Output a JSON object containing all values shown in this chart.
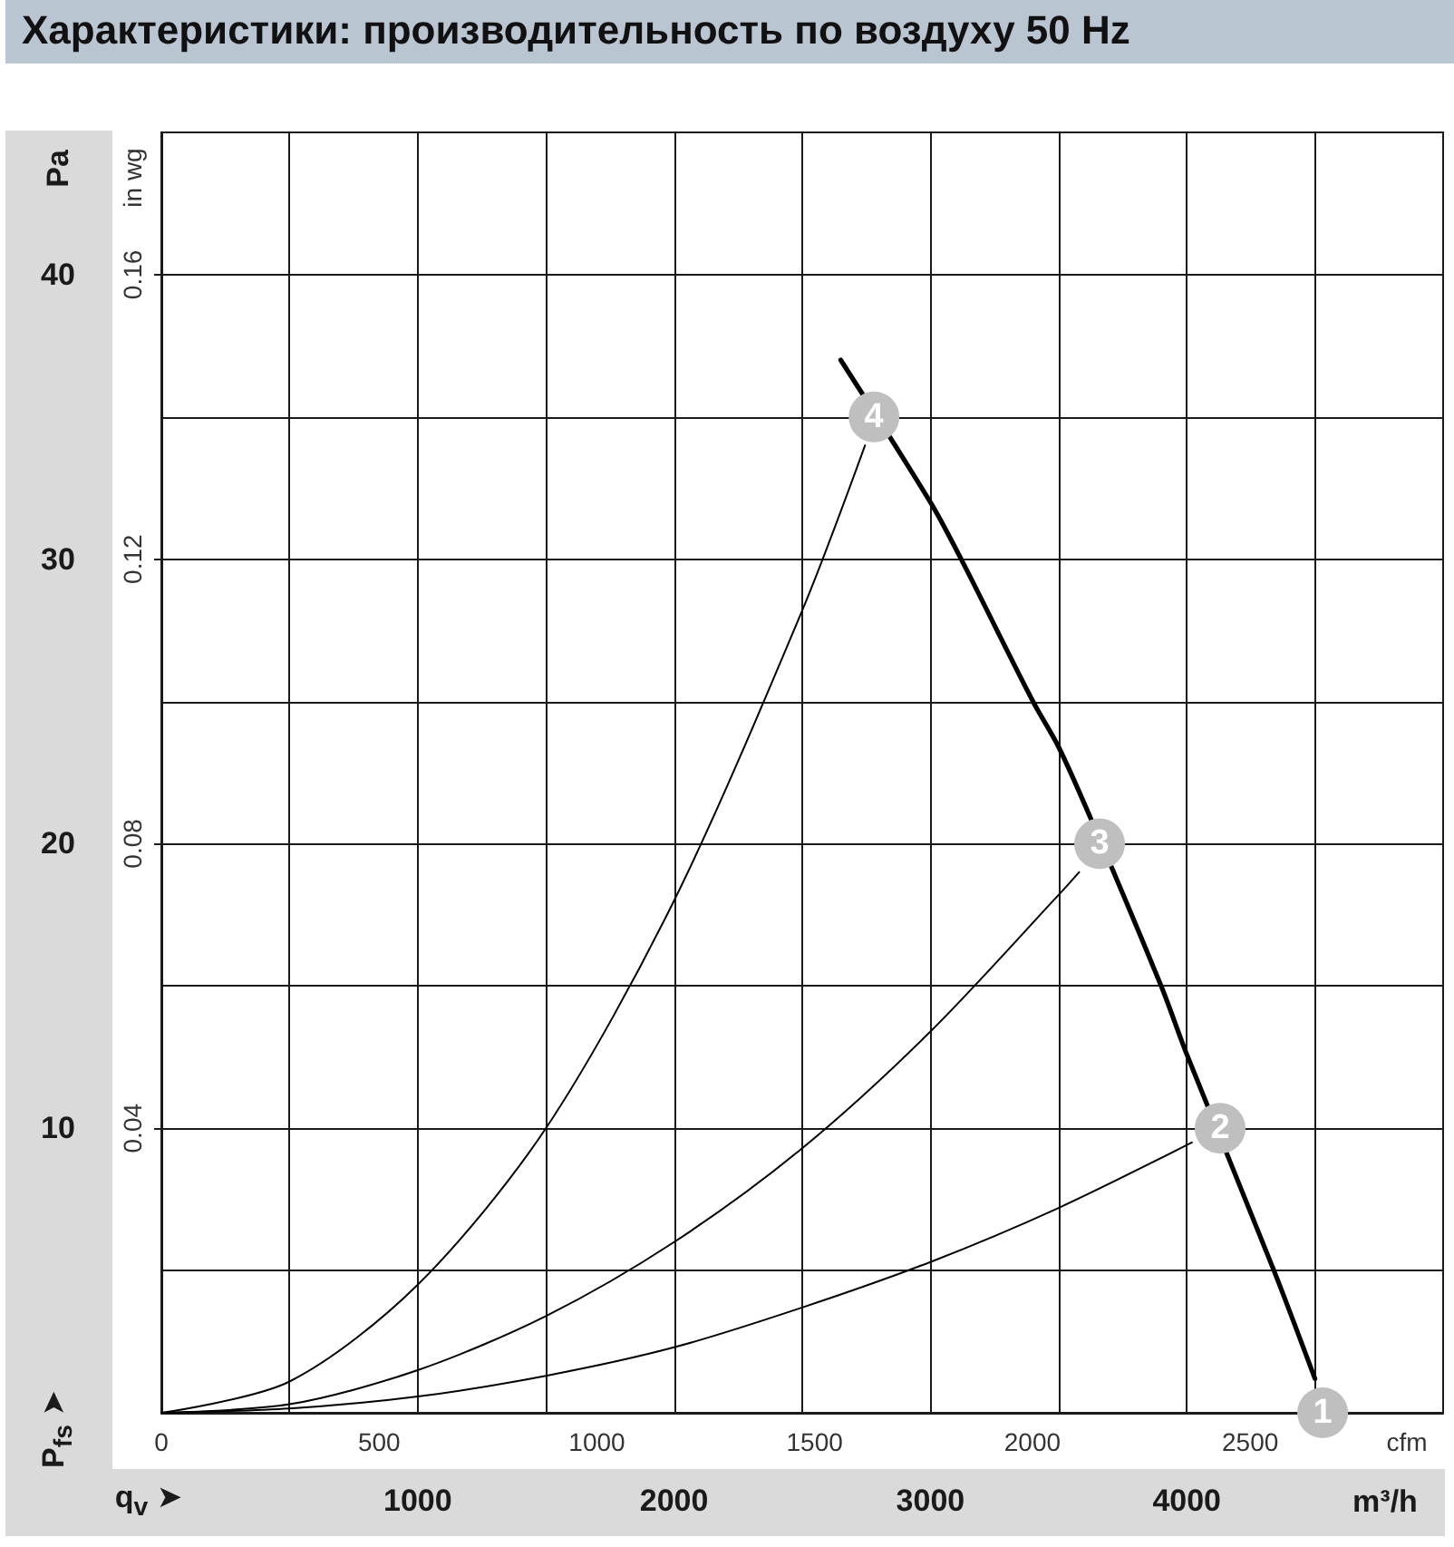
{
  "chart_data": {
    "type": "line",
    "title": "Характеристики: производительность по воздуху 50 Hz",
    "xlabel": "m³/h",
    "x2label": "cfm",
    "ylabel": "Pa",
    "y2label": "in wg",
    "annotations": [
      "P$_{fs}$ ➤",
      "q$_{v}$ ➤",
      {
        "text": "1",
        "x": 4530,
        "y": 0
      },
      {
        "text": "2",
        "x": 4130,
        "y": 10
      },
      {
        "text": "3",
        "x": 3660,
        "y": 20
      },
      {
        "text": "4",
        "x": 2780,
        "y": 35
      }
    ],
    "xlim": [
      0,
      5000
    ],
    "xticks": [
      {
        "value": 500,
        "label": null
      },
      1000,
      {
        "value": 1500,
        "label": null
      },
      2000,
      {
        "value": 2500,
        "label": null
      },
      3000,
      {
        "value": 3500,
        "label": null
      },
      4000,
      {
        "value": 4500,
        "label": null
      }
    ],
    "x2lim": [
      0,
      2943
    ],
    "x2ticks": [
      0,
      500,
      1000,
      1500,
      2000,
      2500
    ],
    "ylim": [
      0,
      45
    ],
    "yticks": [
      {
        "value": 5,
        "label": null
      },
      10,
      {
        "value": 15,
        "label": null
      },
      20,
      {
        "value": 25,
        "label": null
      },
      30,
      {
        "value": 35,
        "label": null
      },
      40
    ],
    "y2lim": [
      0,
      0.18
    ],
    "y2ticks": [
      0.04,
      0.08,
      0.12,
      0.16
    ],
    "grid": true,
    "series": [
      {
        "color": "#000000",
        "x": [
          2650,
          3000,
          3120,
          3400,
          3500,
          3620,
          3900,
          4000,
          4340,
          4500
        ],
        "values": [
          37,
          32.0,
          30,
          25,
          23.4,
          21,
          15,
          12.6,
          5.0,
          1.2
        ]
      },
      {
        "color": "#000000",
        "x": [
          0,
          500,
          1000,
          1500,
          2000,
          2500,
          3000,
          3500,
          4020
        ],
        "values": [
          0,
          0.15,
          0.57,
          1.3,
          2.3,
          3.7,
          5.3,
          7.2,
          9.5
        ]
      },
      {
        "color": "#000000",
        "x": [
          0,
          500,
          1000,
          1500,
          2000,
          2500,
          3000,
          3500,
          3580
        ],
        "values": [
          0,
          0.3,
          1.5,
          3.4,
          6.0,
          9.3,
          13.4,
          18.2,
          19.0
        ]
      },
      {
        "color": "#000000",
        "x": [
          0,
          500,
          1000,
          1500,
          2000,
          2500,
          2745
        ],
        "values": [
          0,
          1.1,
          4.5,
          10,
          18.0,
          28.2,
          34.0
        ]
      }
    ]
  }
}
